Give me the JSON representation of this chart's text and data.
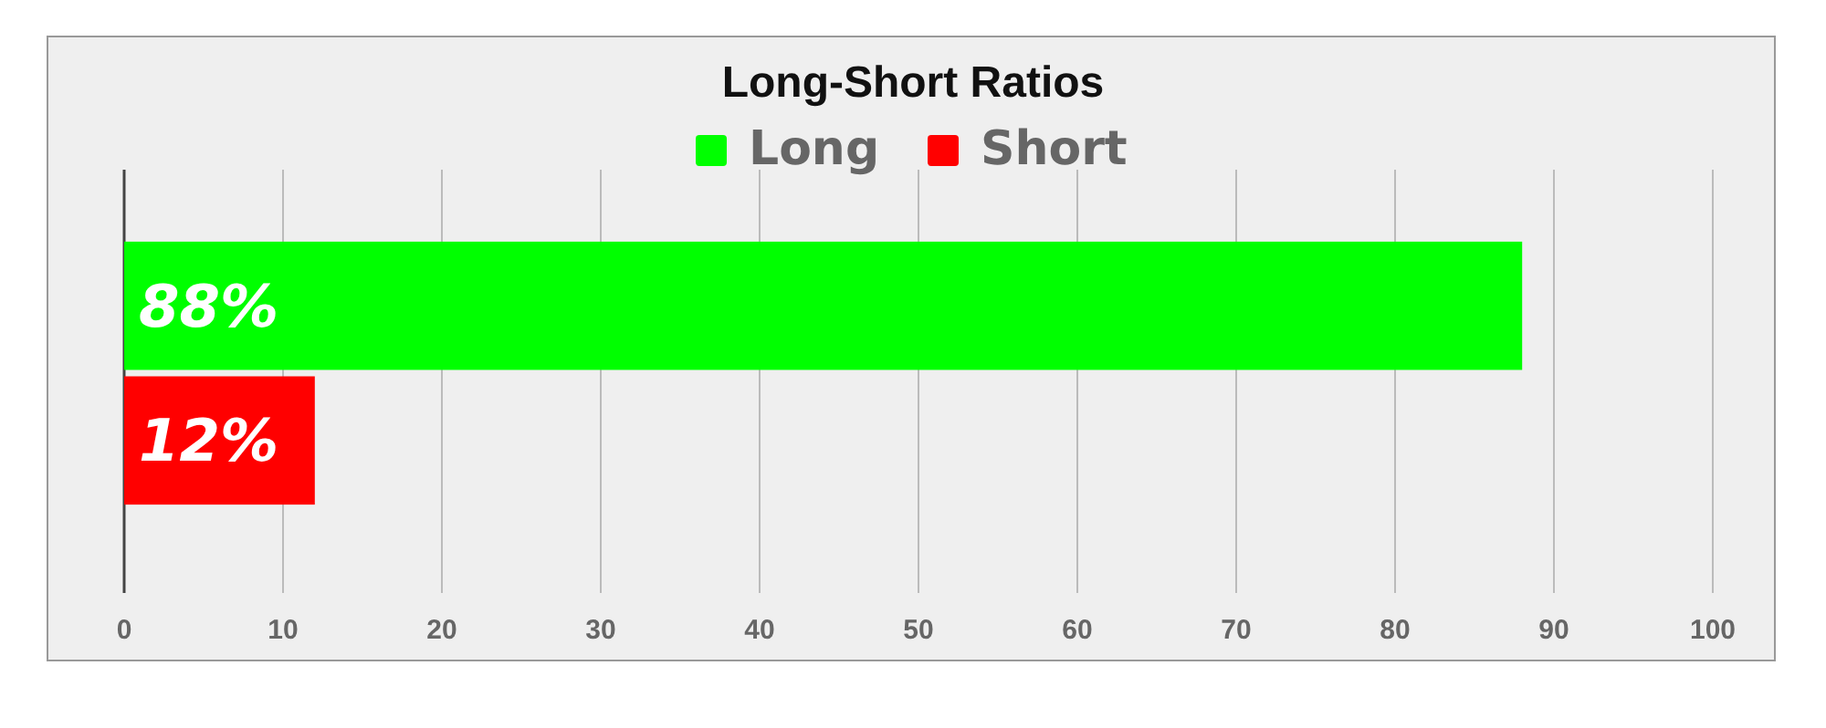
{
  "chart_data": {
    "type": "bar",
    "orientation": "horizontal",
    "title": "Long-Short Ratios",
    "categories": [
      null
    ],
    "series": [
      {
        "name": "Long",
        "color": "#00ff00",
        "values": [
          88
        ],
        "value_labels": [
          "88%"
        ]
      },
      {
        "name": "Short",
        "color": "#ff0000",
        "values": [
          12
        ],
        "value_labels": [
          "12%"
        ]
      }
    ],
    "xlim": [
      0,
      100
    ],
    "xticks": [
      0,
      10,
      20,
      30,
      40,
      50,
      60,
      70,
      80,
      90,
      100
    ],
    "grid": "x",
    "legend": "top"
  }
}
